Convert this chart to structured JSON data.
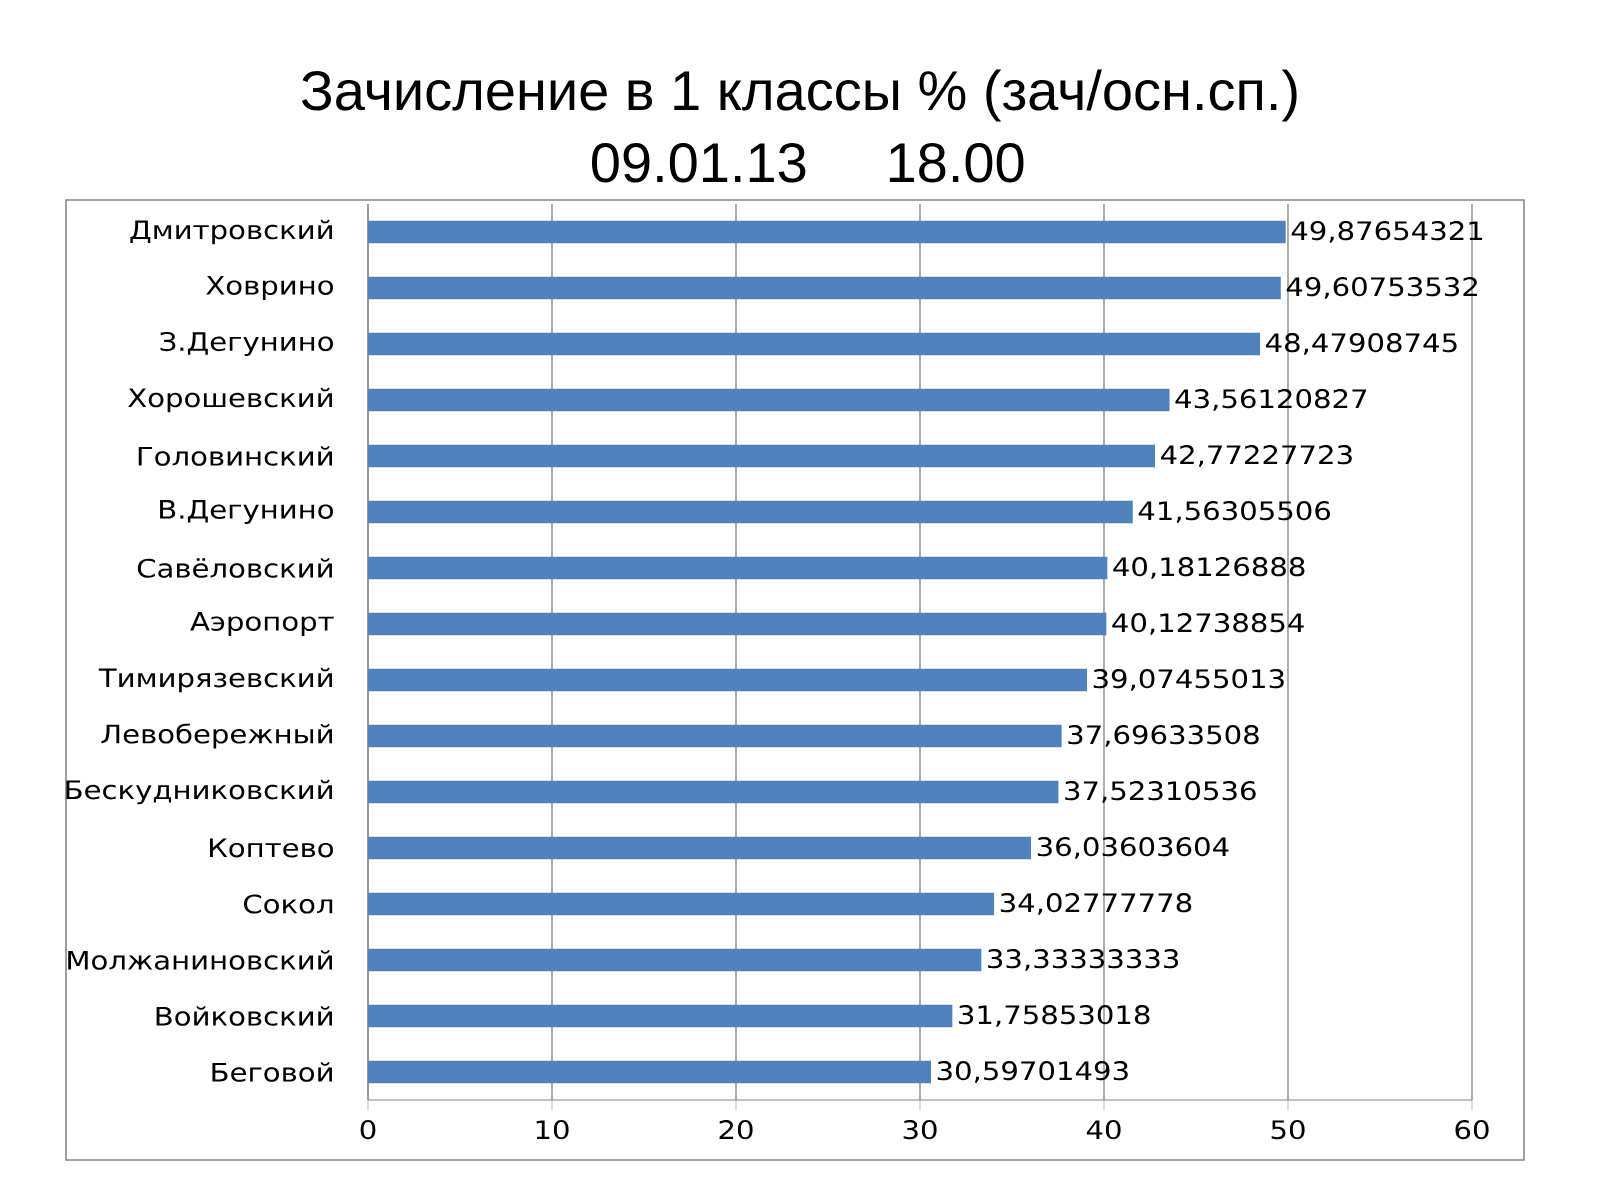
{
  "chart_data": {
    "type": "bar",
    "orientation": "horizontal",
    "title": "Зачисление в 1 классы % (зач/осн.сп.)",
    "subtitle": "09.01.13     18.00",
    "categories": [
      "Дмитровский",
      "Ховрино",
      "З.Дегунино",
      "Хорошевский",
      "Головинский",
      "В.Дегунино",
      "Савёловский",
      "Аэропорт",
      "Тимирязевский",
      "Левобережный",
      "Бескудниковский",
      "Коптево",
      "Сокол",
      "Молжаниновский",
      "Войковский",
      "Беговой"
    ],
    "values": [
      49.87654321,
      49.60753532,
      48.47908745,
      43.56120827,
      42.77227723,
      41.56305506,
      40.18126888,
      40.12738854,
      39.07455013,
      37.69633508,
      37.52310536,
      36.03603604,
      34.02777778,
      33.33333333,
      31.75853018,
      30.59701493
    ],
    "value_labels": [
      "49,87654321",
      "49,60753532",
      "48,47908745",
      "43,56120827",
      "42,77227723",
      "41,56305506",
      "40,18126888",
      "40,12738854",
      "39,07455013",
      "37,69633508",
      "37,52310536",
      "36,03603604",
      "34,02777778",
      "33,33333333",
      "31,75853018",
      "30,59701493"
    ],
    "color": "#4f81bd",
    "xlim": [
      0,
      60
    ],
    "xticks": [
      0,
      10,
      20,
      30,
      40,
      50,
      60
    ],
    "grid": "x"
  }
}
